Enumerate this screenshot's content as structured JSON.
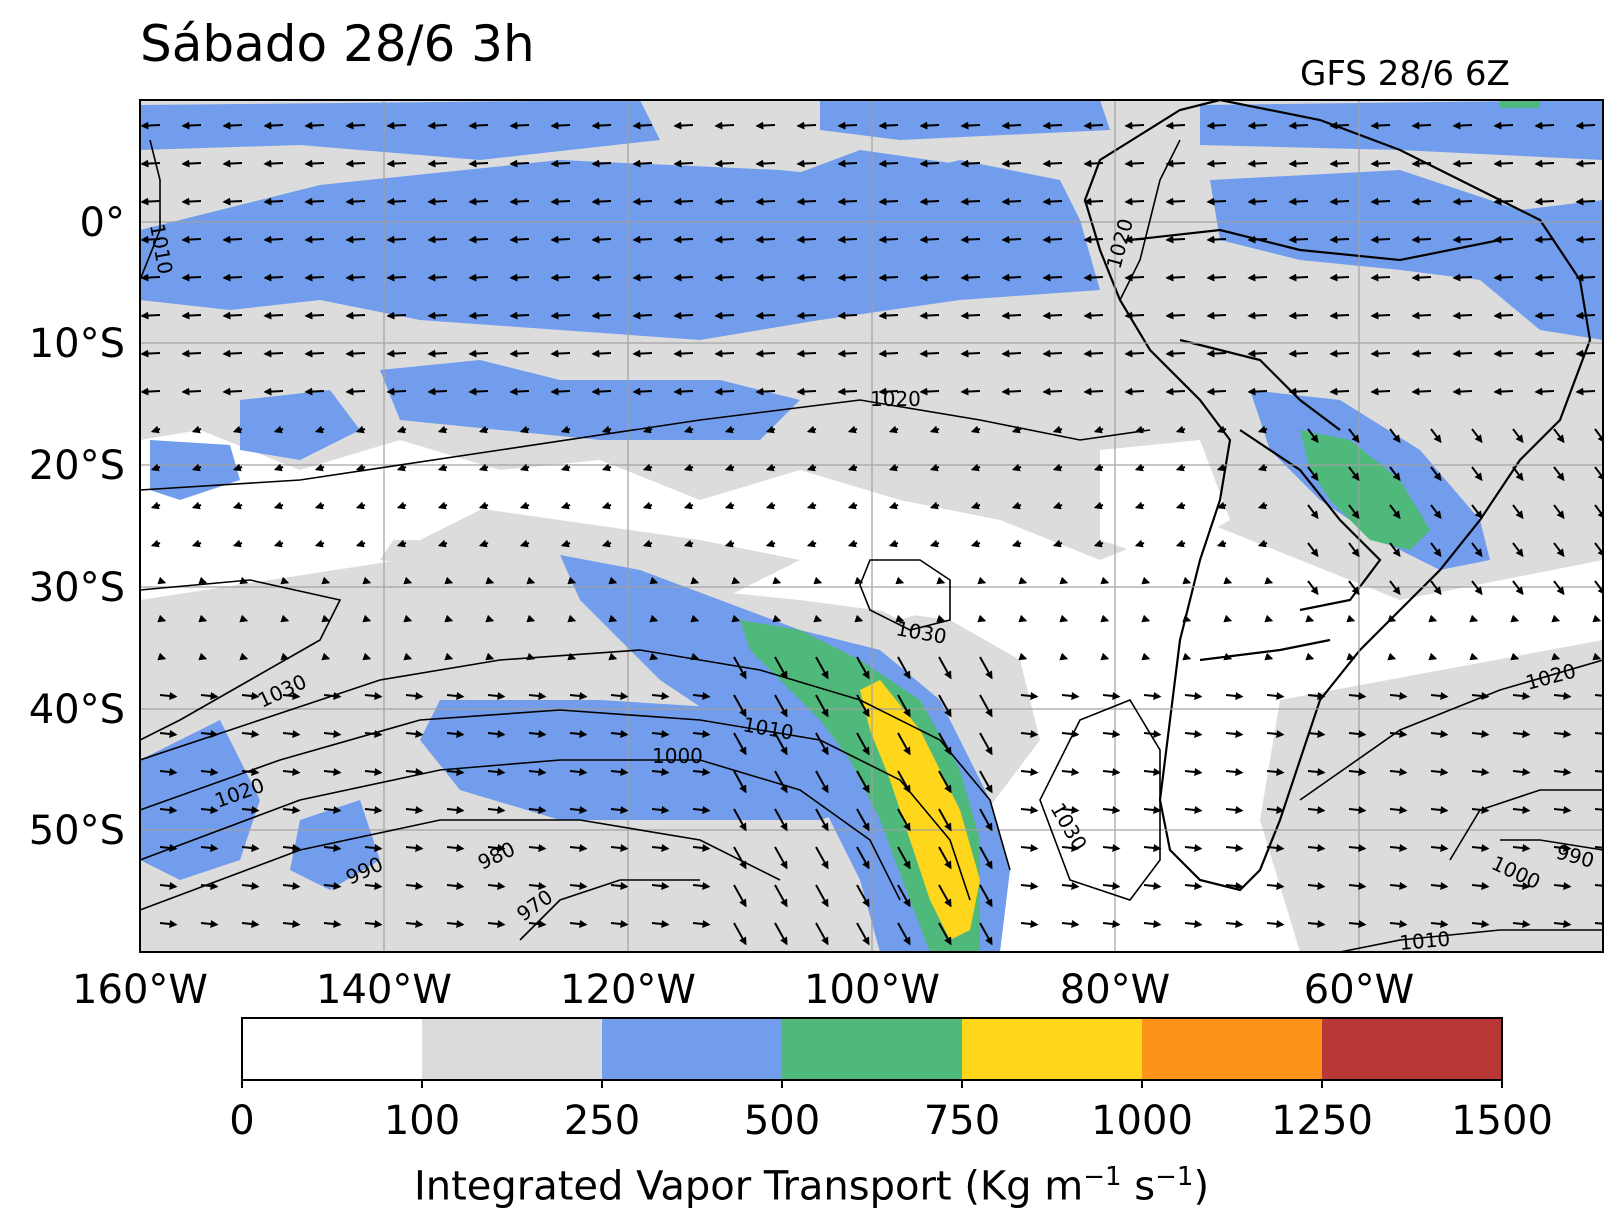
{
  "title": "Sábado 28/6 3h",
  "subtitle": "GFS 28/6 6Z",
  "map": {
    "lon_range": [
      -160,
      0
    ],
    "lat_range": [
      -60,
      10
    ],
    "lon_ticks": [
      {
        "value": -160,
        "label": "160°W"
      },
      {
        "value": -140,
        "label": "140°W"
      },
      {
        "value": -120,
        "label": "120°W"
      },
      {
        "value": -100,
        "label": "100°W"
      },
      {
        "value": -80,
        "label": "80°W"
      },
      {
        "value": -60,
        "label": "60°W"
      }
    ],
    "lat_ticks": [
      {
        "value": 0,
        "label": "0°"
      },
      {
        "value": -10,
        "label": "10°S"
      },
      {
        "value": -20,
        "label": "20°S"
      },
      {
        "value": -30,
        "label": "30°S"
      },
      {
        "value": -40,
        "label": "40°S"
      },
      {
        "value": -50,
        "label": "50°S"
      }
    ],
    "grid": true,
    "isobar_labels": [
      "1010",
      "1020",
      "1020",
      "1030",
      "1030",
      "1020",
      "1010",
      "1000",
      "990",
      "980",
      "970",
      "1030",
      "1020",
      "1000",
      "990",
      "1010"
    ]
  },
  "colorbar": {
    "label_main": "Integrated Vapor Transport (Kg m",
    "label_exp1": "−1",
    "label_mid": " s",
    "label_exp2": "−1",
    "label_end": ")",
    "bounds": [
      "0",
      "100",
      "250",
      "500",
      "750",
      "1000",
      "1250",
      "1500"
    ],
    "colors": [
      "#ffffff",
      "#dcdcdc",
      "#729ded",
      "#4fb97c",
      "#fed71c",
      "#fd9419",
      "#b83838"
    ]
  },
  "colors": {
    "ocean": "#ffffff",
    "ivt_100": "#dcdcdc",
    "ivt_250": "#729ded",
    "ivt_500": "#4fb97c",
    "ivt_750": "#fed71c"
  }
}
